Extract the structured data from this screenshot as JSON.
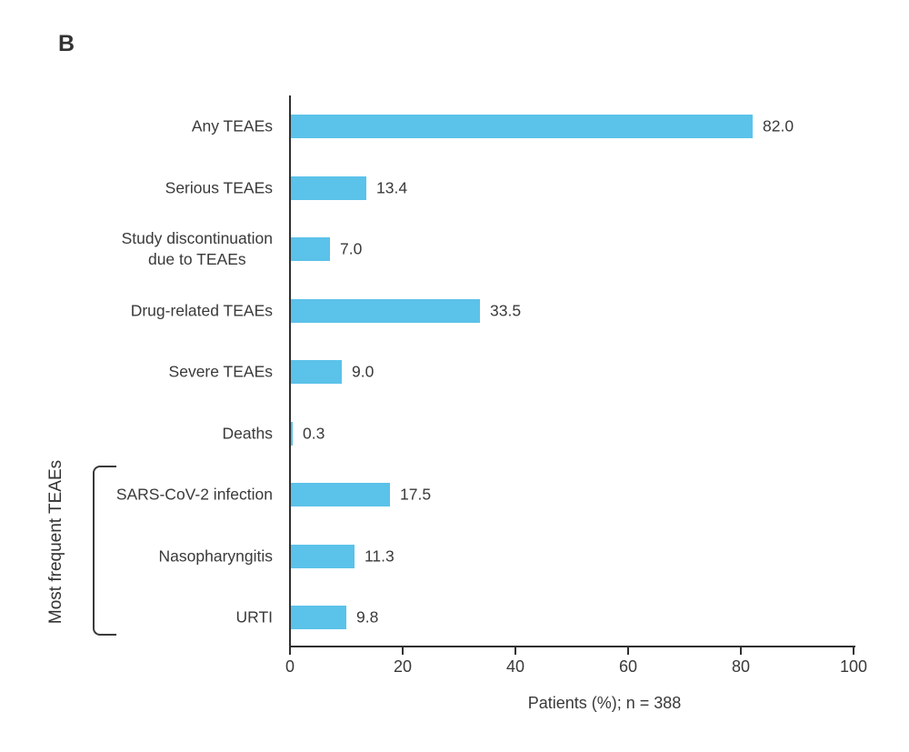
{
  "panel_label": "B",
  "colors": {
    "bar": "#5bc2e9",
    "axis": "#2f2f2f",
    "text": "#3a3a3a"
  },
  "group": {
    "label": "Most frequent TEAEs",
    "members": [
      "SARS-CoV-2 infection",
      "Nasopharyngitis",
      "URTI"
    ]
  },
  "chart_data": {
    "type": "bar",
    "orientation": "horizontal",
    "categories": [
      "Any TEAEs",
      "Serious TEAEs",
      "Study discontinuation\ndue to TEAEs",
      "Drug-related TEAEs",
      "Severe TEAEs",
      "Deaths",
      "SARS-CoV-2 infection",
      "Nasopharyngitis",
      "URTI"
    ],
    "values": [
      82.0,
      13.4,
      7.0,
      33.5,
      9.0,
      0.3,
      17.5,
      11.3,
      9.8
    ],
    "value_labels": [
      "82.0",
      "13.4",
      "7.0",
      "33.5",
      "9.0",
      "0.3",
      "17.5",
      "11.3",
      "9.8"
    ],
    "title": "",
    "xlabel": "Patients (%); n = 388",
    "ylabel": "",
    "xlim": [
      0,
      100
    ],
    "xticks": [
      0,
      20,
      40,
      60,
      80,
      100
    ],
    "grid": false,
    "legend": false,
    "bar_color": "#5bc2e9",
    "group_label": "Most frequent TEAEs",
    "group_member_indices": [
      6,
      7,
      8
    ]
  }
}
